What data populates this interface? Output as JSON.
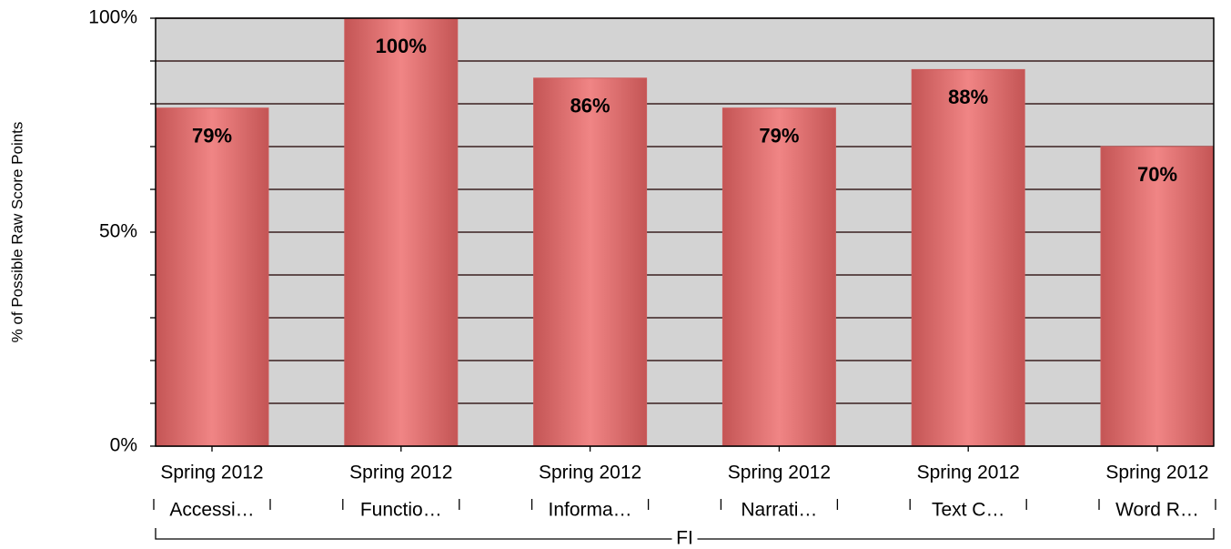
{
  "chart_data": {
    "type": "bar",
    "y_label": "% of Possible Raw Score Points",
    "categories": [
      "Spring 2012",
      "Spring 2012",
      "Spring 2012",
      "Spring 2012",
      "Spring 2012",
      "Spring 2012"
    ],
    "subcategories": [
      "Accessi…",
      "Functio…",
      "Informa…",
      "Narrati…",
      "Text C…",
      "Word R…"
    ],
    "group": "FI",
    "values": [
      79,
      100,
      86,
      79,
      88,
      70
    ],
    "value_labels": [
      "79%",
      "100%",
      "86%",
      "79%",
      "88%",
      "70%"
    ],
    "color": "#cd5c5c",
    "ylim": [
      0,
      100
    ],
    "yticks": [
      {
        "value": 0,
        "label": "0%"
      },
      {
        "value": 50,
        "label": "50%"
      },
      {
        "value": 100,
        "label": "100%"
      }
    ],
    "minor_yticks": [
      10,
      20,
      30,
      40,
      60,
      70,
      80,
      90
    ],
    "grid": true
  }
}
